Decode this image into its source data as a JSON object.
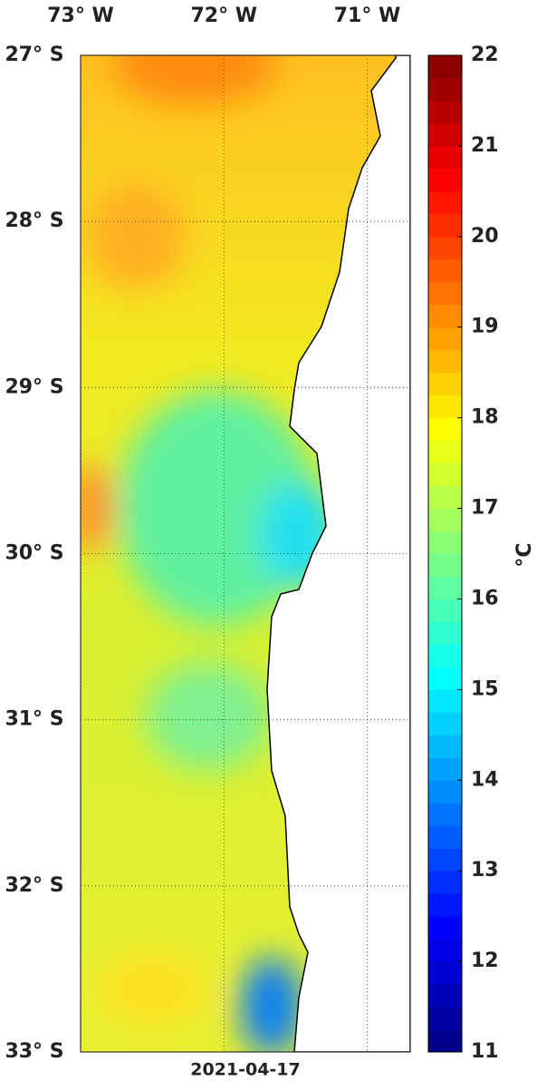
{
  "map": {
    "lon_ticks": [
      {
        "value": -73,
        "label": "73° W"
      },
      {
        "value": -72,
        "label": "72° W"
      },
      {
        "value": -71,
        "label": "71° W"
      }
    ],
    "lonlim": [
      -73,
      -70.7
    ],
    "lat_ticks": [
      {
        "value": -27,
        "label": "27° S"
      },
      {
        "value": -28,
        "label": "28° S"
      },
      {
        "value": -29,
        "label": "29° S"
      },
      {
        "value": -30,
        "label": "30° S"
      },
      {
        "value": -31,
        "label": "31° S"
      },
      {
        "value": -32,
        "label": "32° S"
      },
      {
        "value": -33,
        "label": "33° S"
      }
    ],
    "latlim": [
      -27,
      -33
    ],
    "date": "2021-04-17",
    "colorbar": {
      "colormap": "jet",
      "lim": [
        11,
        22
      ],
      "ticks": [
        11,
        12,
        13,
        14,
        15,
        16,
        17,
        18,
        19,
        20,
        21,
        22
      ],
      "label": "°C"
    }
  }
}
